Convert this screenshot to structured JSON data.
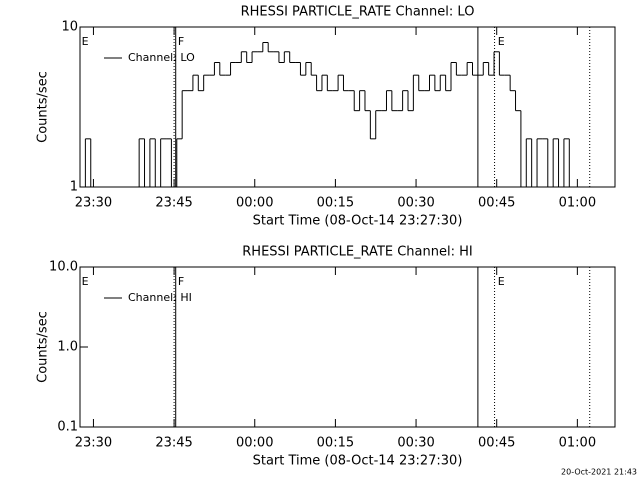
{
  "chart_data": [
    {
      "type": "line",
      "title": "RHESSI PARTICLE_RATE Channel: LO",
      "xlabel": "Start Time (08-Oct-14 23:27:30)",
      "ylabel": "Counts/sec",
      "log_y": true,
      "step": true,
      "color": "#000000",
      "xlim": [
        0,
        99.5
      ],
      "xticks": [
        {
          "value": 2.5,
          "label": "23:30"
        },
        {
          "value": 17.5,
          "label": "23:45"
        },
        {
          "value": 32.5,
          "label": "00:00"
        },
        {
          "value": 47.5,
          "label": "00:15"
        },
        {
          "value": 62.5,
          "label": "00:30"
        },
        {
          "value": 77.5,
          "label": "00:45"
        },
        {
          "value": 92.5,
          "label": "01:00"
        }
      ],
      "ylim": [
        1,
        10
      ],
      "yticks": [
        1,
        10
      ],
      "x": [
        0,
        1,
        2,
        3,
        4,
        5,
        6,
        7,
        8,
        9,
        10,
        11,
        12,
        13,
        14,
        15,
        16,
        17,
        18,
        19,
        20,
        21,
        22,
        23,
        24,
        25,
        26,
        27,
        28,
        29,
        30,
        31,
        32,
        33,
        34,
        35,
        36,
        37,
        38,
        39,
        40,
        41,
        42,
        43,
        44,
        45,
        46,
        47,
        48,
        49,
        50,
        51,
        52,
        53,
        54,
        55,
        56,
        57,
        58,
        59,
        60,
        61,
        62,
        63,
        64,
        65,
        66,
        67,
        68,
        69,
        70,
        71,
        72,
        73,
        74,
        75,
        76,
        77,
        78,
        79,
        80,
        81,
        82,
        83,
        84,
        85,
        86,
        87,
        88,
        89,
        90,
        91,
        92,
        93,
        94,
        95,
        96,
        97
      ],
      "series": [
        {
          "name": "Channel: LO",
          "values": [
            1,
            2,
            1,
            1,
            1,
            1,
            1,
            1,
            1,
            1,
            1,
            2,
            1,
            2,
            1,
            2,
            2,
            1,
            2,
            4,
            4,
            5,
            4,
            5,
            5,
            6,
            5,
            5,
            6,
            6,
            7,
            6,
            7,
            7,
            8,
            7,
            7,
            6,
            7,
            6,
            6,
            5,
            6,
            5,
            4,
            5,
            4,
            4,
            5,
            4,
            4,
            3,
            4,
            3,
            2,
            3,
            3,
            4,
            3,
            3,
            4,
            3,
            5,
            4,
            4,
            5,
            4,
            5,
            4,
            6,
            5,
            5,
            6,
            5,
            5,
            6,
            5,
            7,
            5,
            5,
            4,
            3,
            1,
            2,
            1,
            2,
            2,
            1,
            2,
            1,
            2,
            1,
            1,
            1,
            1,
            1,
            1,
            1
          ]
        }
      ],
      "markers": [
        {
          "x": 17.5,
          "style": "dotted"
        },
        {
          "x": 17.8,
          "style": "solid"
        },
        {
          "x": 74,
          "style": "solid"
        },
        {
          "x": 77.1,
          "style": "dotted"
        },
        {
          "x": 94.8,
          "style": "dotted"
        }
      ],
      "flags": [
        {
          "x": 0.3,
          "label": "E"
        },
        {
          "x": 18.2,
          "label": "F"
        },
        {
          "x": 77.7,
          "label": "E"
        }
      ]
    },
    {
      "type": "line",
      "title": "RHESSI PARTICLE_RATE Channel: HI",
      "xlabel": "Start Time (08-Oct-14 23:27:30)",
      "ylabel": "Counts/sec",
      "log_y": true,
      "step": true,
      "color": "#000000",
      "xlim": [
        0,
        99.5
      ],
      "xticks": [
        {
          "value": 2.5,
          "label": "23:30"
        },
        {
          "value": 17.5,
          "label": "23:45"
        },
        {
          "value": 32.5,
          "label": "00:00"
        },
        {
          "value": 47.5,
          "label": "00:15"
        },
        {
          "value": 62.5,
          "label": "00:30"
        },
        {
          "value": 77.5,
          "label": "00:45"
        },
        {
          "value": 92.5,
          "label": "01:00"
        }
      ],
      "ylim": [
        0.1,
        10
      ],
      "yticks": [
        0.1,
        {
          "value": 1,
          "label": "1.0"
        },
        {
          "value": 10,
          "label": "10.0"
        }
      ],
      "x": [],
      "series": [
        {
          "name": "Channel: HI",
          "values": []
        }
      ],
      "markers": [
        {
          "x": 17.5,
          "style": "dotted"
        },
        {
          "x": 17.8,
          "style": "solid"
        },
        {
          "x": 74,
          "style": "solid"
        },
        {
          "x": 77.1,
          "style": "dotted"
        },
        {
          "x": 94.8,
          "style": "dotted"
        }
      ],
      "flags": [
        {
          "x": 0.3,
          "label": "E"
        },
        {
          "x": 18.2,
          "label": "F"
        },
        {
          "x": 77.7,
          "label": "E"
        }
      ]
    }
  ],
  "footer": "20-Oct-2021 21:43"
}
